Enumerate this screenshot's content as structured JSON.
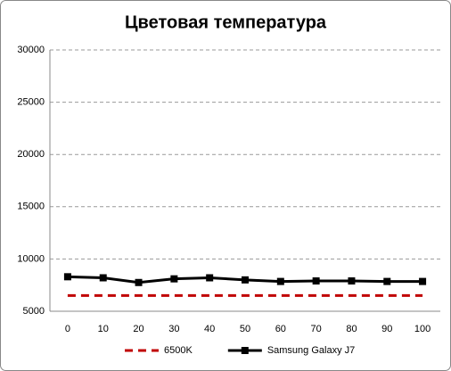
{
  "chart_data": {
    "type": "line",
    "title": "Цветовая температура",
    "categories": [
      "0",
      "10",
      "20",
      "30",
      "40",
      "50",
      "60",
      "70",
      "80",
      "90",
      "100"
    ],
    "series": [
      {
        "name": "6500K",
        "color": "#c00000",
        "dashed": true,
        "marker": null,
        "values": [
          6500,
          6500,
          6500,
          6500,
          6500,
          6500,
          6500,
          6500,
          6500,
          6500,
          6500
        ]
      },
      {
        "name": "Samsung Galaxy J7",
        "color": "#000000",
        "dashed": false,
        "marker": "square",
        "values": [
          8300,
          8200,
          7750,
          8100,
          8200,
          8000,
          7850,
          7900,
          7900,
          7850,
          7850
        ]
      }
    ],
    "ylim": [
      5000,
      30000
    ],
    "yticks": [
      5000,
      10000,
      15000,
      20000,
      25000,
      30000
    ],
    "grid": true,
    "legend": "bottom"
  }
}
